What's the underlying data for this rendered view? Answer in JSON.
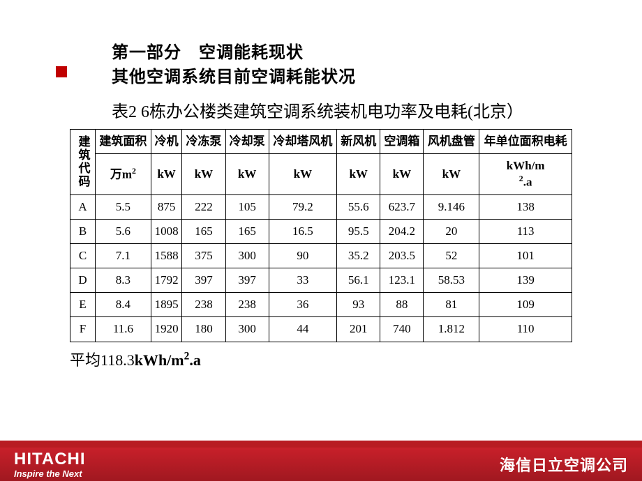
{
  "heading": {
    "line1": "第一部分　空调能耗现状",
    "line2": "其他空调系统目前空调耗能状况"
  },
  "table_caption": "表2  6栋办公楼类建筑空调系统装机电功率及电耗(北京）",
  "table": {
    "header_row1": {
      "col0": "建筑代码",
      "cols": [
        "建筑面积",
        "冷机",
        "冷冻泵",
        "冷却泵",
        "冷却塔风机",
        "新风机",
        "空调箱",
        "风机盘管",
        "年单位面积电耗"
      ]
    },
    "header_row2": {
      "cols": [
        "万m²",
        "kW",
        "kW",
        "kW",
        "kW",
        "kW",
        "kW",
        "kW",
        "kWh/m².a"
      ]
    },
    "rows": [
      {
        "code": "A",
        "cells": [
          "5.5",
          "875",
          "222",
          "105",
          "79.2",
          "55.6",
          "623.7",
          "9.146",
          "138"
        ]
      },
      {
        "code": "B",
        "cells": [
          "5.6",
          "1008",
          "165",
          "165",
          "16.5",
          "95.5",
          "204.2",
          "20",
          "113"
        ]
      },
      {
        "code": "C",
        "cells": [
          "7.1",
          "1588",
          "375",
          "300",
          "90",
          "35.2",
          "203.5",
          "52",
          "101"
        ]
      },
      {
        "code": "D",
        "cells": [
          "8.3",
          "1792",
          "397",
          "397",
          "33",
          "56.1",
          "123.1",
          "58.53",
          "139"
        ]
      },
      {
        "code": "E",
        "cells": [
          "8.4",
          "1895",
          "238",
          "238",
          "36",
          "93",
          "88",
          "81",
          "109"
        ]
      },
      {
        "code": "F",
        "cells": [
          "11.6",
          "1920",
          "180",
          "300",
          "44",
          "201",
          "740",
          "1.812",
          "110"
        ]
      }
    ]
  },
  "avg_label": "平均",
  "avg_value": "118.3",
  "avg_unit": "kWh/m².a",
  "footer": {
    "logo": "HITACHI",
    "tagline": "Inspire the Next",
    "company": "海信日立空调公司"
  },
  "style": {
    "accent_color": "#b81c22",
    "footer_gradient_top": "#c8202a",
    "footer_gradient_bottom": "#a01820"
  }
}
